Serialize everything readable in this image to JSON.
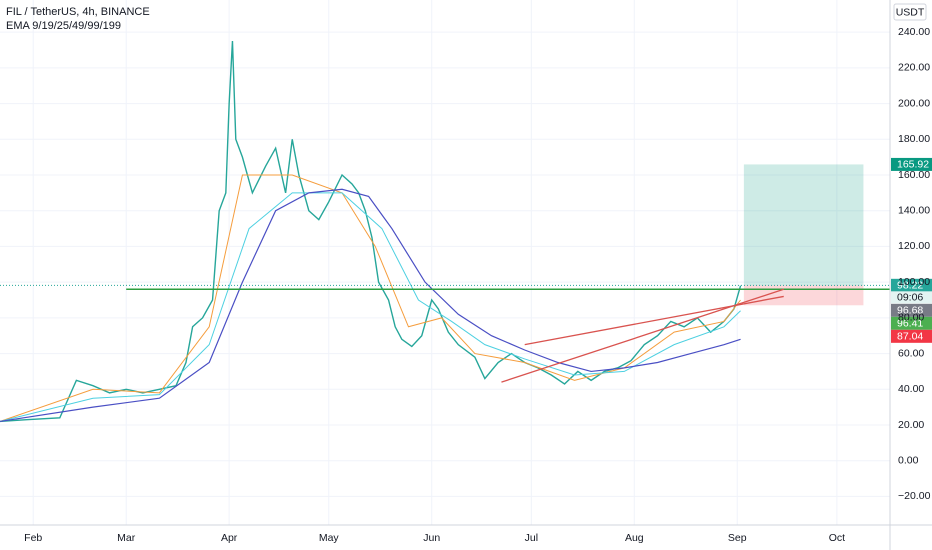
{
  "chart_data": {
    "type": "line",
    "title": "FIL / TetherUS, 4h, BINANCE",
    "subtitle": "EMA 9/19/25/49/99/199",
    "y_axis_label": "USDT",
    "xlim": [
      22,
      290
    ],
    "ylim": [
      -36,
      258
    ],
    "xticks": [
      {
        "value": 32,
        "label": "Feb"
      },
      {
        "value": 60,
        "label": "Mar"
      },
      {
        "value": 91,
        "label": "Apr"
      },
      {
        "value": 121,
        "label": "May"
      },
      {
        "value": 152,
        "label": "Jun"
      },
      {
        "value": 182,
        "label": "Jul"
      },
      {
        "value": 213,
        "label": "Aug"
      },
      {
        "value": 244,
        "label": "Sep"
      },
      {
        "value": 274,
        "label": "Oct"
      }
    ],
    "yticks": [
      {
        "value": -20,
        "label": "−20.00"
      },
      {
        "value": 0,
        "label": "0.00"
      },
      {
        "value": 20,
        "label": "20.00"
      },
      {
        "value": 40,
        "label": "40.00"
      },
      {
        "value": 60,
        "label": "60.00"
      },
      {
        "value": 80,
        "label": "80.00"
      },
      {
        "value": 100,
        "label": "100.00"
      },
      {
        "value": 120,
        "label": "120.00"
      },
      {
        "value": 140,
        "label": "140.00"
      },
      {
        "value": 160,
        "label": "160.00"
      },
      {
        "value": 180,
        "label": "180.00"
      },
      {
        "value": 200,
        "label": "200.00"
      },
      {
        "value": 220,
        "label": "220.00"
      },
      {
        "value": 240,
        "label": "240.00"
      }
    ],
    "grid": true,
    "series": [
      {
        "color": "#26a69a",
        "width": 1.4,
        "x": [
          22,
          30,
          40,
          45,
          50,
          55,
          60,
          65,
          70,
          75,
          78,
          80,
          83,
          86,
          88,
          90,
          91,
          92,
          93,
          95,
          98,
          102,
          105,
          108,
          110,
          112,
          115,
          118,
          121,
          125,
          128,
          130,
          132,
          134,
          136,
          139,
          141,
          143,
          146,
          149,
          152,
          154,
          157,
          160,
          165,
          168,
          172,
          176,
          180,
          184,
          188,
          192,
          196,
          200,
          204,
          208,
          212,
          216,
          220,
          224,
          228,
          232,
          236,
          240,
          243,
          245
        ],
        "values": [
          22,
          23,
          24,
          45,
          42,
          38,
          40,
          38,
          40,
          42,
          55,
          75,
          80,
          90,
          140,
          150,
          200,
          235,
          180,
          170,
          150,
          165,
          175,
          150,
          180,
          160,
          140,
          135,
          145,
          160,
          155,
          150,
          140,
          125,
          100,
          90,
          75,
          68,
          64,
          70,
          90,
          85,
          72,
          65,
          58,
          46,
          55,
          60,
          55,
          52,
          48,
          43,
          50,
          45,
          50,
          52,
          56,
          65,
          70,
          78,
          75,
          80,
          72,
          78,
          85,
          98
        ]
      },
      {
        "color": "#f59d3d",
        "width": 1,
        "x": [
          22,
          50,
          70,
          85,
          95,
          110,
          125,
          135,
          145,
          155,
          165,
          180,
          195,
          210,
          225,
          240,
          245
        ],
        "values": [
          22,
          40,
          38,
          75,
          160,
          160,
          150,
          120,
          75,
          80,
          60,
          55,
          45,
          52,
          72,
          78,
          90
        ]
      },
      {
        "color": "#4dd0e1",
        "width": 1,
        "x": [
          22,
          50,
          70,
          85,
          97,
          110,
          125,
          137,
          148,
          158,
          168,
          180,
          195,
          210,
          225,
          240,
          245
        ],
        "values": [
          22,
          35,
          37,
          65,
          130,
          150,
          150,
          130,
          90,
          78,
          65,
          57,
          48,
          50,
          65,
          75,
          84
        ]
      },
      {
        "color": "#4a4fc4",
        "width": 1.2,
        "x": [
          22,
          50,
          70,
          85,
          95,
          105,
          115,
          125,
          133,
          140,
          150,
          160,
          170,
          180,
          190,
          200,
          210,
          220,
          230,
          240,
          245
        ],
        "values": [
          22,
          30,
          35,
          55,
          100,
          140,
          150,
          152,
          148,
          130,
          100,
          82,
          70,
          62,
          55,
          50,
          52,
          55,
          60,
          65,
          68
        ]
      }
    ],
    "hline": {
      "value": 96,
      "x": [
        60,
        290
      ],
      "color": "#2e9e3e"
    },
    "trendlines": [
      {
        "x": [
          173,
          258
        ],
        "values": [
          44,
          96
        ],
        "color": "#d9534f"
      },
      {
        "x": [
          180,
          258
        ],
        "values": [
          65,
          92
        ],
        "color": "#d9534f"
      }
    ],
    "position": {
      "x": [
        246,
        282
      ],
      "entry": 98.22,
      "target": 165.92,
      "stop": 87.04
    },
    "price_tags": [
      {
        "value": 165.92,
        "label": "165.92",
        "color": "#089981"
      },
      {
        "value": 98.22,
        "label": "98.22",
        "color": "#26a69a"
      },
      {
        "value": 96.68,
        "label": "96.68",
        "color": "#787b86"
      },
      {
        "value": 96.41,
        "label": "96.41",
        "color": "#4caf50"
      },
      {
        "value": 87.04,
        "label": "87.04",
        "color": "#f23645"
      }
    ],
    "countdown": "09:06"
  }
}
